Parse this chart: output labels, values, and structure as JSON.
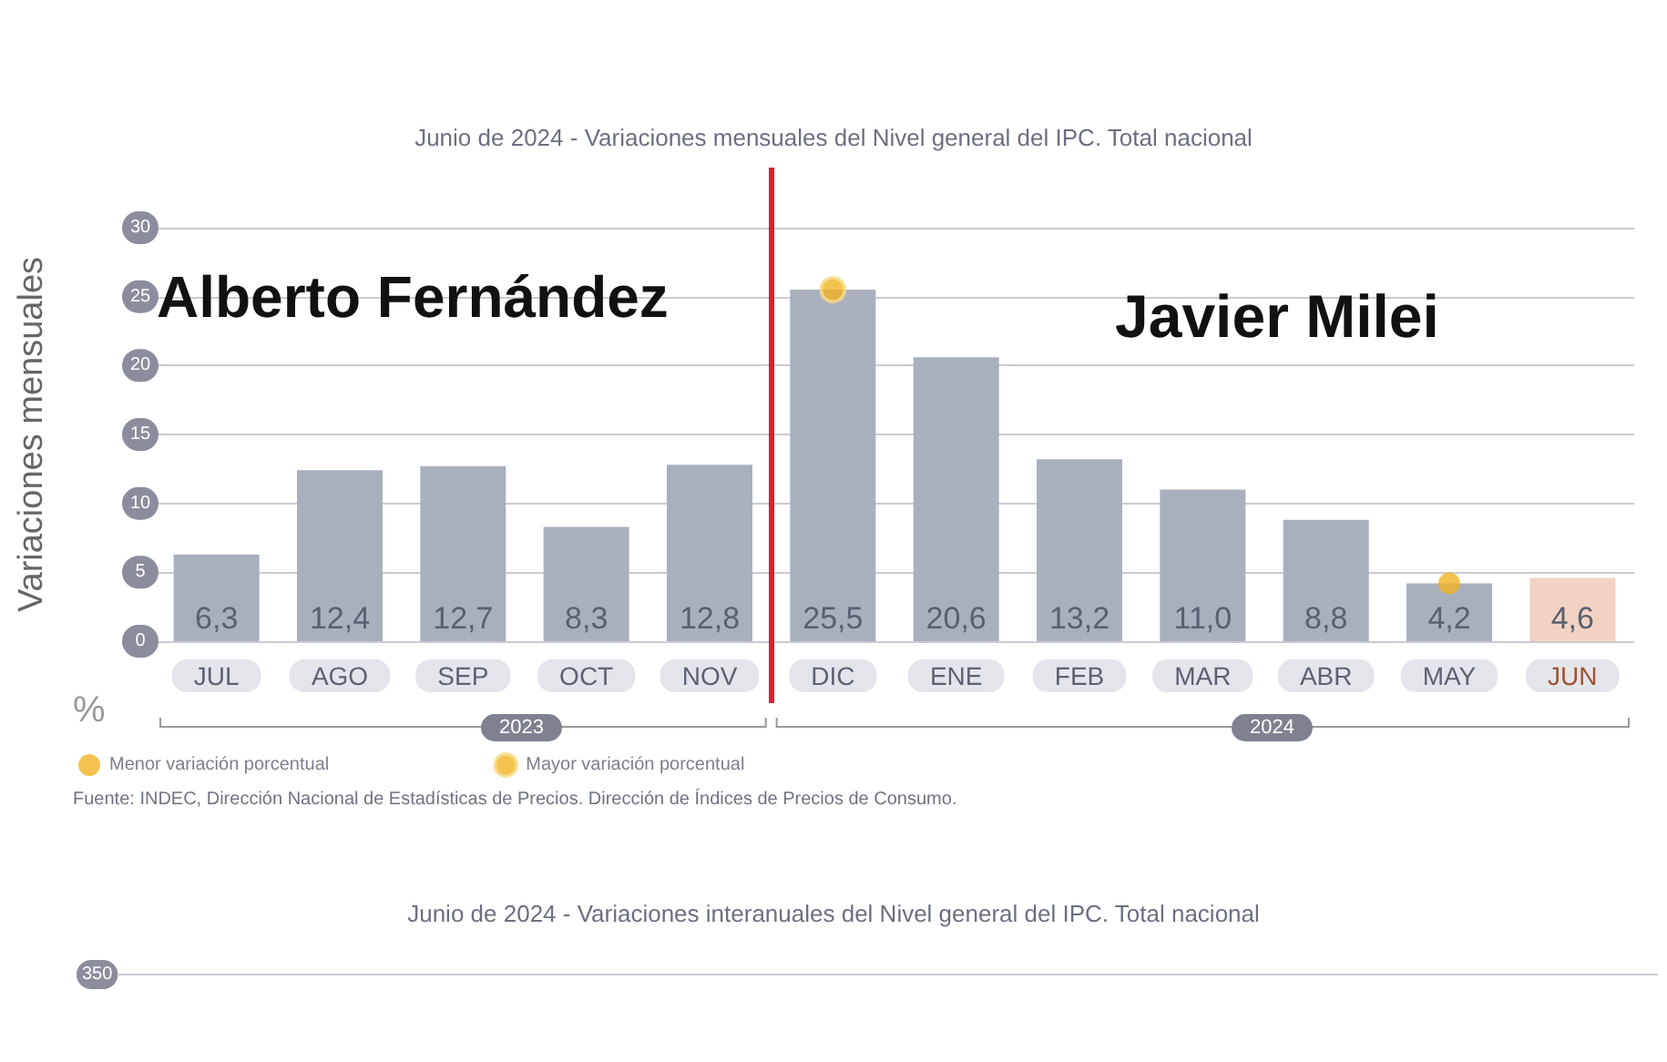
{
  "chart_data": [
    {
      "type": "bar",
      "title": "Junio de 2024 - Variaciones mensuales del Nivel general del IPC. Total nacional",
      "ylabel": "Variaciones mensuales",
      "categories": [
        "JUL",
        "AGO",
        "SEP",
        "OCT",
        "NOV",
        "DIC",
        "ENE",
        "FEB",
        "MAR",
        "ABR",
        "MAY",
        "JUN"
      ],
      "series": [
        {
          "type": "bar",
          "values": [
            6.3,
            12.4,
            12.7,
            8.3,
            12.8,
            25.5,
            20.6,
            13.2,
            11.0,
            8.8,
            4.2,
            4.6
          ],
          "colors": [
            "#a9b0bd",
            "#a9b0bd",
            "#a9b0bd",
            "#a9b0bd",
            "#a9b0bd",
            "#a9b0bd",
            "#a9b0bd",
            "#a9b0bd",
            "#a9b0bd",
            "#a9b0bd",
            "#a9b0bd",
            "#f2d3c3"
          ],
          "value_labels": [
            "6,3",
            "12,4",
            "12,7",
            "8,3",
            "12,8",
            "25,5",
            "20,6",
            "13,2",
            "11,0",
            "8,8",
            "4,2",
            "4,6"
          ]
        },
        {
          "type": "scatter",
          "name": "Menor variación porcentual",
          "color": "#f0b323",
          "x": [
            "MAY"
          ],
          "values": [
            4.2
          ]
        },
        {
          "type": "scatter",
          "name": "Mayor variación porcentual",
          "color": "#f0b323",
          "x": [
            "DIC"
          ],
          "values": [
            25.5
          ]
        }
      ],
      "ylim": [
        0,
        30
      ],
      "yticks": [
        0,
        5,
        10,
        15,
        20,
        25,
        30
      ],
      "grid": "y",
      "legend": "bottom left",
      "ref_lines": [
        {
          "axis": "x",
          "value": "DIC",
          "color": "#e0202a"
        }
      ],
      "annotations": [
        "%",
        "2023",
        "2024",
        "Alberto Fernández",
        "Javier Milei",
        "Fuente: INDEC, Dirección Nacional de Estadísticas de Precios. Dirección de Índices de Precios de Consumo."
      ]
    },
    {
      "type": "other",
      "title": "Junio de 2024 - Variaciones interanuales del Nivel general del IPC. Total nacional",
      "annotations": [
        "350"
      ]
    }
  ]
}
